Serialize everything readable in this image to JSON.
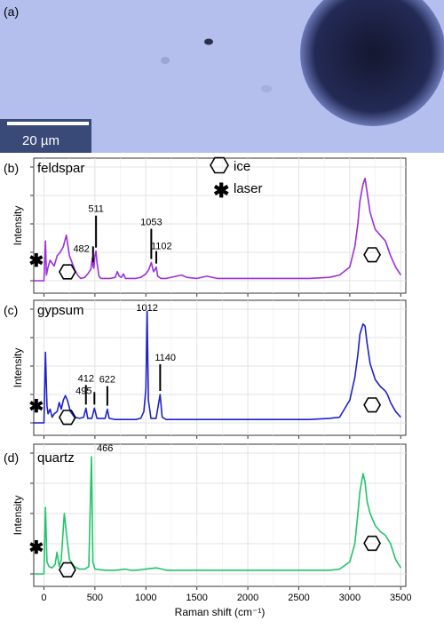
{
  "panel_a": {
    "label": "(a)",
    "scale_bar_text": "20 µm",
    "colors": {
      "background": "#b4bfee",
      "dark_spot": "#1a1e3c",
      "scale_box": "#3a4a78"
    }
  },
  "legend": {
    "ice_label": "ice",
    "laser_label": "laser",
    "ice_symbol": "hexagon-icon",
    "laser_symbol": "asterisk-icon"
  },
  "chart_data": [
    {
      "type": "line",
      "panel_label": "(b)",
      "title": "feldspar",
      "xlabel": "",
      "ylabel": "Intensity",
      "xlim": [
        -100,
        3550
      ],
      "ylim": [
        0,
        1
      ],
      "grid": true,
      "color": "#9b30d9",
      "x": [
        -100,
        0,
        15,
        25,
        40,
        60,
        100,
        130,
        160,
        190,
        220,
        250,
        280,
        300,
        330,
        360,
        400,
        430,
        460,
        475,
        482,
        490,
        500,
        511,
        520,
        540,
        560,
        600,
        650,
        700,
        720,
        740,
        760,
        780,
        800,
        850,
        900,
        950,
        1000,
        1030,
        1053,
        1075,
        1090,
        1102,
        1115,
        1150,
        1200,
        1300,
        1350,
        1400,
        1500,
        1600,
        1700,
        1800,
        2000,
        2200,
        2400,
        2600,
        2800,
        2900,
        3000,
        3050,
        3080,
        3100,
        3130,
        3150,
        3170,
        3200,
        3250,
        3300,
        3350,
        3400,
        3450,
        3500
      ],
      "y": [
        0,
        0,
        0.35,
        0.05,
        0.12,
        0.18,
        0.13,
        0.22,
        0.25,
        0.3,
        0.4,
        0.22,
        0.15,
        0.1,
        0.05,
        0.02,
        0.03,
        0.06,
        0.1,
        0.2,
        0.13,
        0.11,
        0.22,
        0.26,
        0.16,
        0.04,
        0.02,
        0.02,
        0.02,
        0.03,
        0.08,
        0.04,
        0.03,
        0.06,
        0.02,
        0.02,
        0.02,
        0.03,
        0.06,
        0.1,
        0.16,
        0.08,
        0.1,
        0.12,
        0.04,
        0.02,
        0.02,
        0.04,
        0.05,
        0.03,
        0.02,
        0.04,
        0.02,
        0.02,
        0.02,
        0.02,
        0.02,
        0.02,
        0.03,
        0.05,
        0.12,
        0.3,
        0.5,
        0.7,
        0.85,
        0.9,
        0.78,
        0.6,
        0.45,
        0.4,
        0.35,
        0.22,
        0.12,
        0.05
      ],
      "annotations": [
        {
          "text": "482",
          "x": 482
        },
        {
          "text": "511",
          "x": 511
        },
        {
          "text": "1053",
          "x": 1053
        },
        {
          "text": "1102",
          "x": 1102
        }
      ],
      "markers": {
        "laser_x": -75,
        "laser_y": 0.18,
        "ice_low_x": 230,
        "ice_low_y": 0.0,
        "ice_high_x": 3220,
        "ice_high_y": 0.15
      }
    },
    {
      "type": "line",
      "panel_label": "(c)",
      "title": "gypsum",
      "xlabel": "",
      "ylabel": "Intensity",
      "xlim": [
        -100,
        3550
      ],
      "ylim": [
        0,
        1
      ],
      "grid": true,
      "color": "#1e22c8",
      "x": [
        -100,
        0,
        15,
        30,
        40,
        60,
        80,
        100,
        130,
        150,
        170,
        190,
        210,
        230,
        260,
        300,
        350,
        390,
        412,
        430,
        470,
        495,
        520,
        600,
        622,
        640,
        700,
        800,
        900,
        950,
        980,
        1000,
        1012,
        1025,
        1050,
        1100,
        1140,
        1160,
        1200,
        1300,
        1400,
        1600,
        1800,
        2000,
        2200,
        2400,
        2600,
        2800,
        2900,
        3000,
        3050,
        3080,
        3100,
        3130,
        3150,
        3170,
        3200,
        3250,
        3300,
        3350,
        3370,
        3400,
        3450,
        3500
      ],
      "y": [
        0,
        0,
        0.62,
        0.15,
        0.08,
        0.12,
        0.05,
        0.08,
        0.1,
        0.18,
        0.12,
        0.2,
        0.24,
        0.2,
        0.1,
        0.05,
        0.04,
        0.05,
        0.13,
        0.04,
        0.04,
        0.13,
        0.04,
        0.04,
        0.12,
        0.04,
        0.03,
        0.03,
        0.03,
        0.04,
        0.1,
        0.3,
        0.98,
        0.2,
        0.04,
        0.04,
        0.25,
        0.05,
        0.03,
        0.03,
        0.03,
        0.03,
        0.03,
        0.03,
        0.03,
        0.03,
        0.03,
        0.04,
        0.05,
        0.2,
        0.4,
        0.6,
        0.78,
        0.87,
        0.85,
        0.7,
        0.52,
        0.38,
        0.32,
        0.28,
        0.25,
        0.18,
        0.1,
        0.05
      ],
      "annotations": [
        {
          "text": "412",
          "x": 412
        },
        {
          "text": "495",
          "x": 495
        },
        {
          "text": "622",
          "x": 622
        },
        {
          "text": "1012",
          "x": 1012
        },
        {
          "text": "1140",
          "x": 1140
        }
      ],
      "markers": {
        "laser_x": -75,
        "laser_y": 0.15,
        "ice_low_x": 230,
        "ice_low_y": -0.03,
        "ice_high_x": 3220,
        "ice_high_y": 0.08
      }
    },
    {
      "type": "line",
      "panel_label": "(d)",
      "title": "quartz",
      "xlabel": "Raman shift (cm⁻¹)",
      "ylabel": "Intensity",
      "xlim": [
        -100,
        3550
      ],
      "ylim": [
        0,
        1
      ],
      "grid": true,
      "color": "#22c46a",
      "xticks": [
        0,
        500,
        1000,
        1500,
        2000,
        2500,
        3000,
        3500
      ],
      "x": [
        -100,
        0,
        15,
        30,
        50,
        80,
        110,
        128,
        150,
        170,
        200,
        210,
        225,
        250,
        300,
        350,
        400,
        440,
        466,
        480,
        500,
        600,
        700,
        800,
        850,
        900,
        1000,
        1100,
        1160,
        1200,
        1400,
        1600,
        1800,
        2000,
        2200,
        2400,
        2600,
        2800,
        2900,
        3000,
        3050,
        3080,
        3100,
        3130,
        3150,
        3170,
        3200,
        3250,
        3300,
        3350,
        3400,
        3450,
        3500
      ],
      "y": [
        0,
        0,
        0.55,
        0.1,
        0.06,
        0.05,
        0.08,
        0.18,
        0.06,
        0.12,
        0.5,
        0.42,
        0.3,
        0.12,
        0.06,
        0.04,
        0.04,
        0.06,
        0.97,
        0.1,
        0.04,
        0.03,
        0.03,
        0.04,
        0.03,
        0.03,
        0.04,
        0.05,
        0.04,
        0.03,
        0.03,
        0.03,
        0.03,
        0.03,
        0.03,
        0.03,
        0.03,
        0.03,
        0.04,
        0.1,
        0.25,
        0.5,
        0.68,
        0.83,
        0.76,
        0.6,
        0.5,
        0.4,
        0.35,
        0.32,
        0.25,
        0.12,
        0.05
      ],
      "annotations": [
        {
          "text": "466",
          "x": 466
        }
      ],
      "markers": {
        "laser_x": -75,
        "laser_y": 0.22,
        "ice_low_x": 230,
        "ice_low_y": -0.04,
        "ice_high_x": 3220,
        "ice_high_y": 0.18
      }
    }
  ]
}
